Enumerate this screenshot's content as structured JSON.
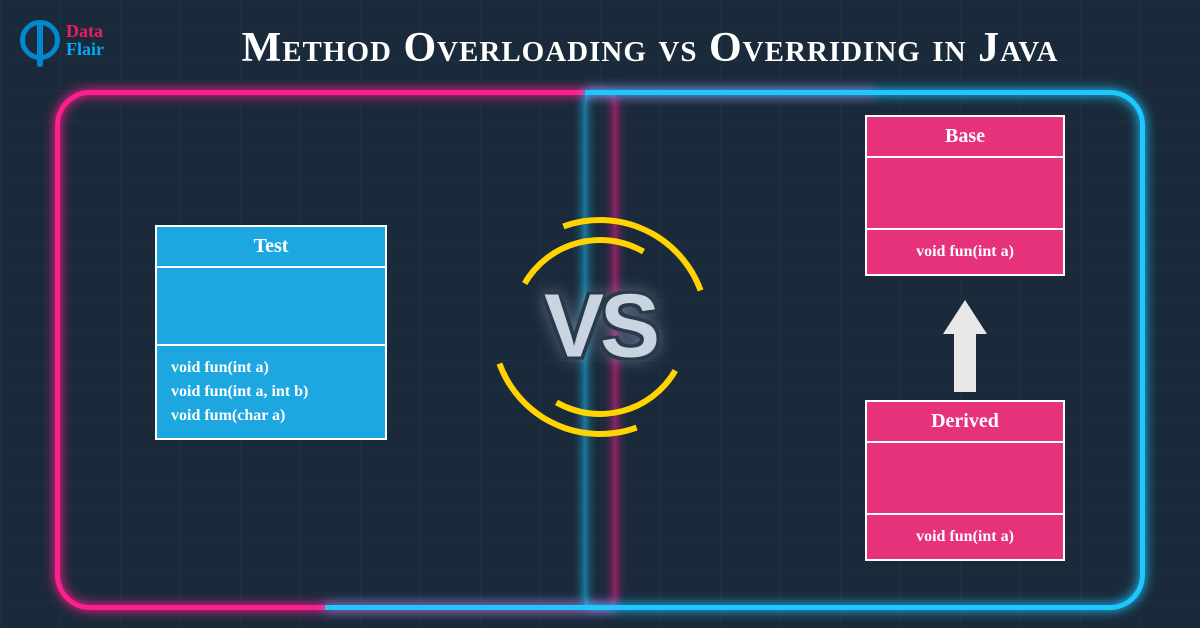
{
  "title": "Method Overloading vs Overriding in Java",
  "logo": {
    "line1": "Data",
    "line2": "Flair"
  },
  "vs_label": "VS",
  "colors": {
    "neon_pink": "#ff1e8e",
    "neon_blue": "#1ec8ff",
    "arc": "#ffd400",
    "box_blue": "#1da7e0",
    "box_pink": "#e6327a",
    "background": "#1a2a3a"
  },
  "left_box": {
    "name": "Test",
    "methods": [
      "void fun(int a)",
      "void fun(int a, int b)",
      "void fum(char a)"
    ]
  },
  "right_top_box": {
    "name": "Base",
    "methods": [
      "void fun(int a)"
    ]
  },
  "right_bottom_box": {
    "name": "Derived",
    "methods": [
      "void fun(int a)"
    ]
  }
}
